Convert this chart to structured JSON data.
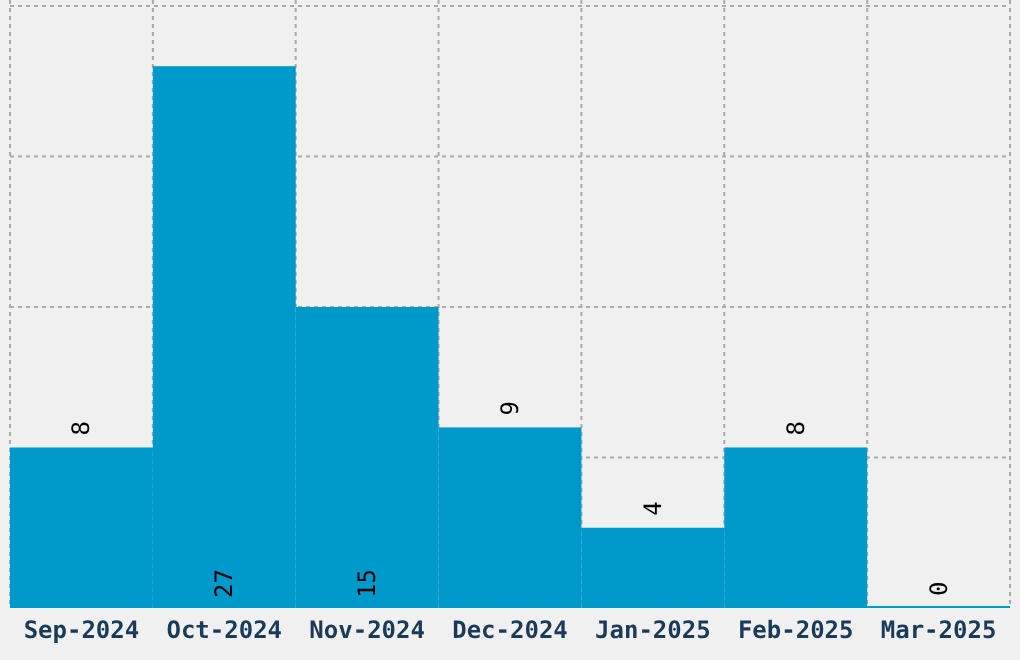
{
  "chart_data": {
    "type": "bar",
    "categories": [
      "Sep-2024",
      "Oct-2024",
      "Nov-2024",
      "Dec-2024",
      "Jan-2025",
      "Feb-2025",
      "Mar-2025"
    ],
    "values": [
      8,
      27,
      15,
      9,
      4,
      8,
      0
    ],
    "color": "#0099cc",
    "data_labels": true,
    "ylim": [
      0,
      30
    ],
    "yticks": [
      {
        "value": 7.5,
        "label": null
      },
      {
        "value": 15,
        "label": null
      },
      {
        "value": 22.5,
        "label": null
      },
      {
        "value": 30,
        "label": null
      }
    ],
    "tick_labels": "x",
    "grid": true
  }
}
